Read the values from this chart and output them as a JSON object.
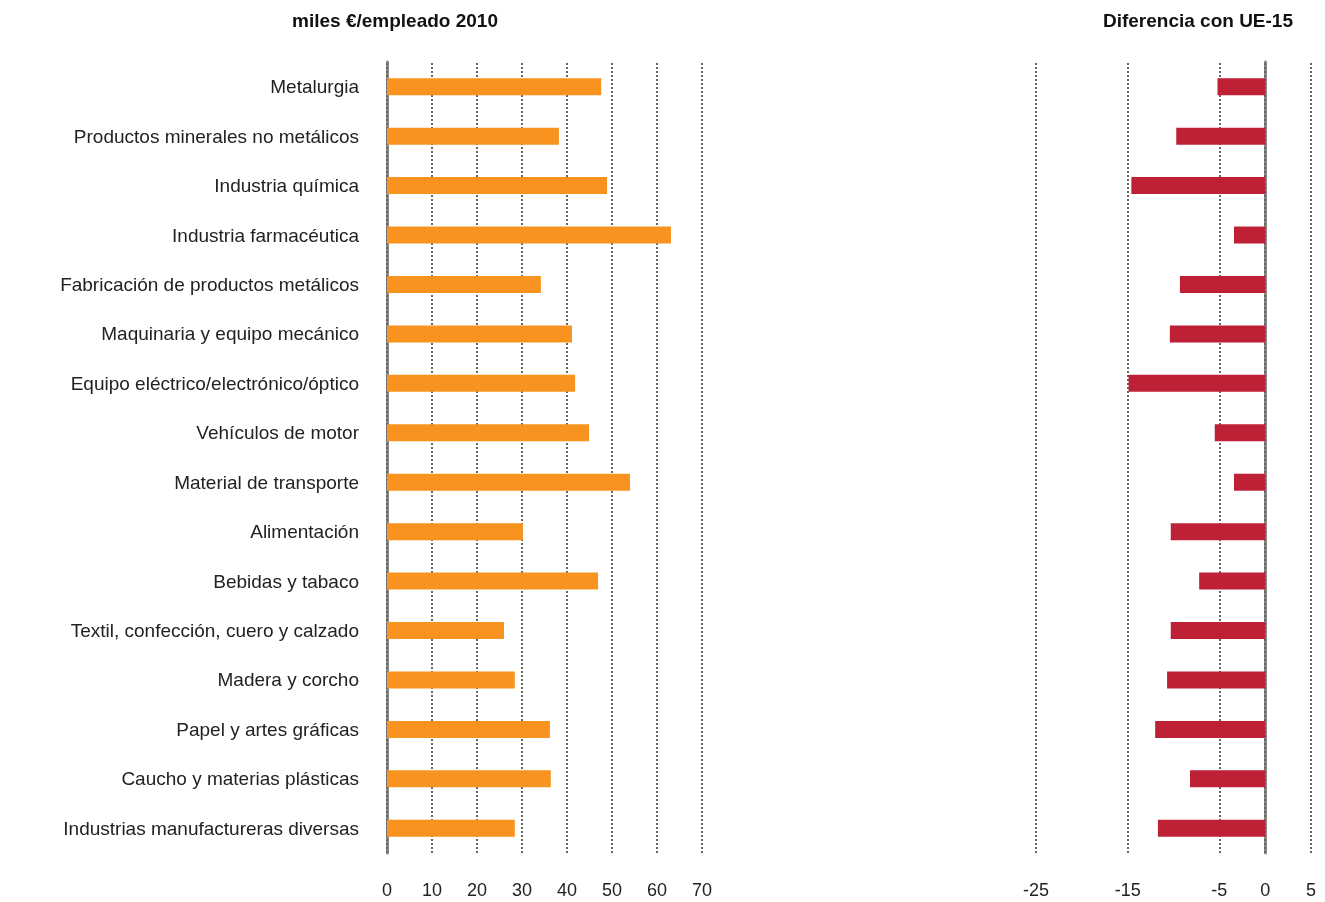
{
  "chart_data": [
    {
      "type": "bar",
      "orientation": "horizontal",
      "title": "miles €/empleado 2010",
      "categories": [
        "Metalurgia",
        "Productos minerales no metálicos",
        "Industria química",
        "Industria farmacéutica",
        "Fabricación de productos metálicos",
        "Maquinaria y equipo mecánico",
        "Equipo eléctrico/electrónico/óptico",
        "Vehículos de motor",
        "Material de transporte",
        "Alimentación",
        "Bebidas y tabaco",
        "Textil, confección, cuero y calzado",
        "Madera y corcho",
        "Papel y artes gráficas",
        "Caucho y materias plásticas",
        "Industrias manufactureras diversas"
      ],
      "values": [
        47.6,
        38.2,
        48.9,
        63.1,
        34.2,
        41.1,
        41.8,
        44.9,
        54.0,
        30.2,
        46.9,
        26.0,
        28.4,
        36.2,
        36.4,
        28.4
      ],
      "color": "#f7931e",
      "xlim": [
        0,
        70
      ],
      "xticks": [
        0,
        10,
        20,
        30,
        40,
        50,
        60,
        70
      ],
      "grid": "x"
    },
    {
      "type": "bar",
      "orientation": "horizontal",
      "title": "Diferencia con UE-15",
      "categories": [
        null,
        null,
        null,
        null,
        null,
        null,
        null,
        null,
        null,
        null,
        null,
        null,
        null,
        null,
        null,
        null
      ],
      "values": [
        -5.2,
        -9.7,
        -14.6,
        -3.4,
        -9.3,
        -10.4,
        -14.9,
        -5.5,
        -3.4,
        -10.3,
        -7.2,
        -10.3,
        -10.7,
        -12.0,
        -8.2,
        -11.7
      ],
      "color": "#be2035",
      "xlim": [
        -25,
        5
      ],
      "xticks": [
        -25,
        -15,
        -5,
        0,
        5
      ],
      "grid": "x"
    }
  ]
}
